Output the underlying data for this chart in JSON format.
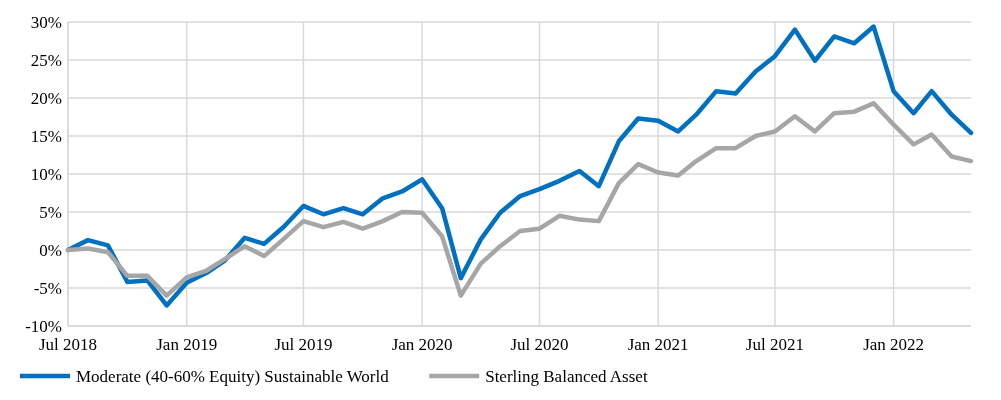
{
  "chart_data": {
    "type": "line",
    "x": [
      "2018-07",
      "2018-08",
      "2018-09",
      "2018-10",
      "2018-11",
      "2018-12",
      "2019-01",
      "2019-02",
      "2019-03",
      "2019-04",
      "2019-05",
      "2019-06",
      "2019-07",
      "2019-08",
      "2019-09",
      "2019-10",
      "2019-11",
      "2019-12",
      "2020-01",
      "2020-02",
      "2020-03",
      "2020-04",
      "2020-05",
      "2020-06",
      "2020-07",
      "2020-08",
      "2020-09",
      "2020-10",
      "2020-11",
      "2020-12",
      "2021-01",
      "2021-02",
      "2021-03",
      "2021-04",
      "2021-05",
      "2021-06",
      "2021-07",
      "2021-08",
      "2021-09",
      "2021-10",
      "2021-11",
      "2021-12",
      "2022-01",
      "2022-02",
      "2022-03",
      "2022-04",
      "2022-05"
    ],
    "series": [
      {
        "name": "Moderate (40-60% Equity) Sustainable World",
        "color": "#0070c0",
        "values": [
          0,
          1.3,
          0.6,
          -4.2,
          -4.0,
          -7.3,
          -4.3,
          -3.0,
          -1.4,
          1.6,
          0.8,
          3.1,
          5.8,
          4.7,
          5.5,
          4.7,
          6.8,
          7.7,
          9.3,
          5.5,
          -3.7,
          1.4,
          4.9,
          7.1,
          8.0,
          9.1,
          10.4,
          8.4,
          14.3,
          17.3,
          17.0,
          15.6,
          17.8,
          20.9,
          20.6,
          23.5,
          25.5,
          29.0,
          24.9,
          28.1,
          27.2,
          29.4,
          20.9,
          18.0,
          20.9,
          17.8,
          15.4
        ]
      },
      {
        "name": "Sterling Balanced Asset",
        "color": "#a6a6a6",
        "values": [
          0,
          0.2,
          -0.3,
          -3.4,
          -3.4,
          -6.0,
          -3.6,
          -2.7,
          -1.2,
          0.5,
          -0.8,
          1.5,
          3.8,
          3.0,
          3.7,
          2.8,
          3.8,
          5.0,
          4.9,
          1.8,
          -6.0,
          -1.8,
          0.5,
          2.5,
          2.8,
          4.5,
          4.0,
          3.8,
          8.8,
          11.3,
          10.2,
          9.8,
          11.7,
          13.4,
          13.4,
          15.0,
          15.6,
          17.6,
          15.6,
          18.0,
          18.2,
          19.3,
          16.5,
          13.9,
          15.2,
          12.3,
          11.7
        ]
      }
    ],
    "xlim": [
      "2018-07",
      "2022-05"
    ],
    "xticks": [
      {
        "value": "2018-07",
        "label": "Jul 2018"
      },
      {
        "value": "2019-01",
        "label": "Jan 2019"
      },
      {
        "value": "2019-07",
        "label": "Jul 2019"
      },
      {
        "value": "2020-01",
        "label": "Jan 2020"
      },
      {
        "value": "2020-07",
        "label": "Jul 2020"
      },
      {
        "value": "2021-01",
        "label": "Jan 2021"
      },
      {
        "value": "2021-07",
        "label": "Jul 2021"
      },
      {
        "value": "2022-01",
        "label": "Jan 2022"
      }
    ],
    "ylim": [
      -10,
      30
    ],
    "yticks": [
      {
        "value": -10,
        "label": "-10%"
      },
      {
        "value": -5,
        "label": "-5%"
      },
      {
        "value": 0,
        "label": "0%"
      },
      {
        "value": 5,
        "label": "5%"
      },
      {
        "value": 10,
        "label": "10%"
      },
      {
        "value": 15,
        "label": "15%"
      },
      {
        "value": 20,
        "label": "20%"
      },
      {
        "value": 25,
        "label": "25%"
      },
      {
        "value": 30,
        "label": "30%"
      }
    ],
    "grid": true,
    "legend": "bottom",
    "line_style": "solid",
    "marker": "none"
  }
}
